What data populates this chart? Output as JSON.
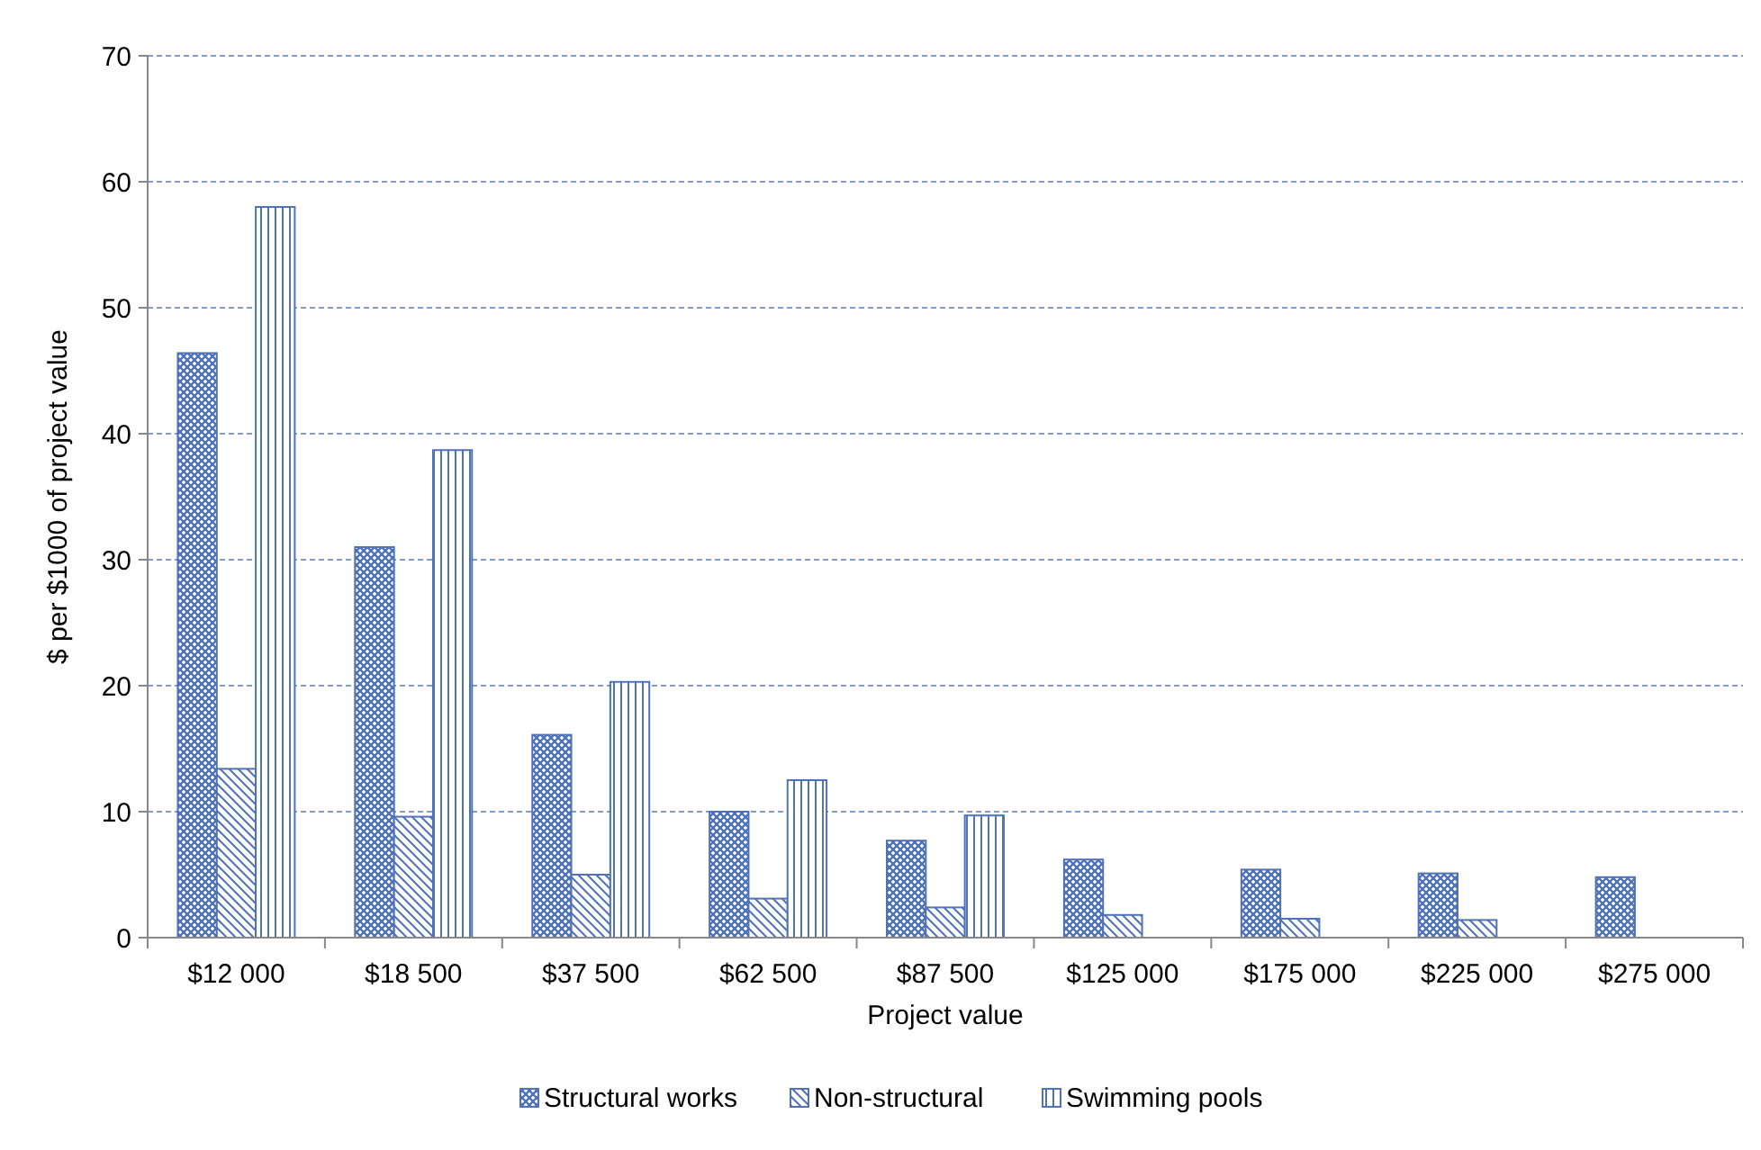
{
  "chart_data": {
    "type": "bar",
    "xlabel": "Project value",
    "ylabel": "$ per $1000 of project value",
    "categories": [
      "$12 000",
      "$18 500",
      "$37 500",
      "$62 500",
      "$87 500",
      "$125 000",
      "$175 000",
      "$225 000",
      "$275 000"
    ],
    "series": [
      {
        "name": "Structural works",
        "color": "#4f72b8",
        "values": [
          46.4,
          31,
          16.1,
          10,
          7.7,
          6.2,
          5.4,
          5.1,
          4.8
        ]
      },
      {
        "name": "Non-structural",
        "color": "#4f72b8",
        "values": [
          13.4,
          9.6,
          5,
          3.1,
          2.4,
          1.8,
          1.5,
          1.4,
          null
        ]
      },
      {
        "name": "Swimming pools",
        "color": "#4f72b8",
        "values": [
          58,
          38.7,
          20.3,
          12.5,
          9.7,
          null,
          null,
          null,
          null
        ]
      }
    ],
    "ylim": [
      0,
      70
    ],
    "yticks": [
      0,
      10,
      20,
      30,
      40,
      50,
      60,
      70
    ],
    "grid": "y",
    "legend": "bottom"
  }
}
